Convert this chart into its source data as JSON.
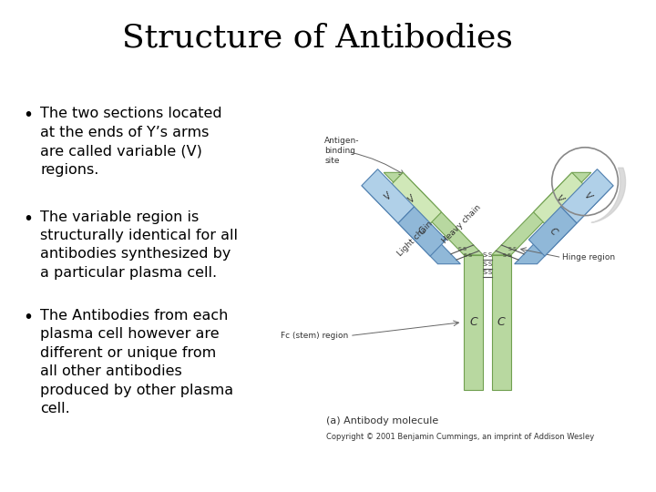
{
  "title": "Structure of Antibodies",
  "title_fontsize": 26,
  "title_font": "serif",
  "background_color": "#ffffff",
  "text_color": "#000000",
  "bullet_points": [
    "The two sections located\nat the ends of Y’s arms\nare called variable (V)\nregions.",
    "The variable region is\nstructurally identical for all\nantibodies synthesized by\na particular plasma cell.",
    "The Antibodies from each\nplasma cell however are\ndifferent or unique from\nall other antibodies\nproduced by other plasma\ncell."
  ],
  "bullet_fontsize": 11.5,
  "caption": "(a) Antibody molecule",
  "copyright": "Copyright © 2001 Benjamin Cummings, an imprint of Addison Wesley",
  "green_light": "#b8d8a0",
  "green_dark": "#70a050",
  "blue_light": "#90b8d8",
  "blue_mid": "#5080b0",
  "green_vregion": "#d0e8b8",
  "gray_circle": "#aaaaaa"
}
